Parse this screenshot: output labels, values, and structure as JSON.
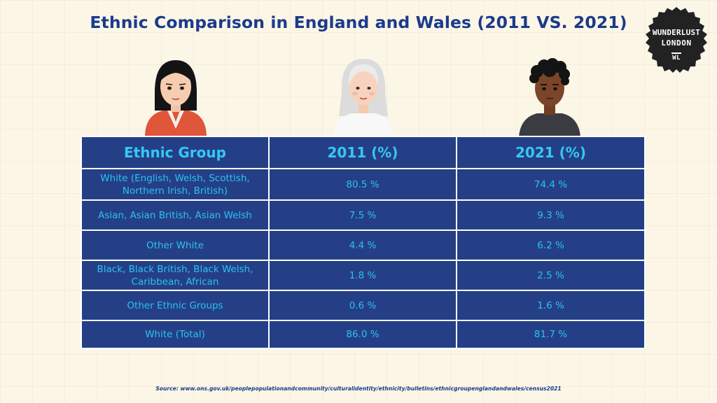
{
  "title": "Ethnic Comparison in England and Wales (2011 VS. 2021)",
  "logo": {
    "line1": "WUNDERLUST",
    "line2": "LONDON",
    "line3": "WL"
  },
  "table": {
    "headers": [
      "Ethnic Group",
      "2011 (%)",
      "2021 (%)"
    ],
    "rows": [
      {
        "group": "White (English, Welsh, Scottish, Northern Irish, British)",
        "y2011": "80.5 %",
        "y2021": "74.4 %"
      },
      {
        "group": "Asian, Asian British, Asian Welsh",
        "y2011": "7.5 %",
        "y2021": "9.3 %"
      },
      {
        "group": "Other White",
        "y2011": "4.4 %",
        "y2021": "6.2 %"
      },
      {
        "group": "Black, Black British, Black Welsh, Caribbean, African",
        "y2011": "1.8 %",
        "y2021": "2.5 %"
      },
      {
        "group": "Other Ethnic Groups",
        "y2011": "0.6 %",
        "y2021": "1.6 %"
      },
      {
        "group": "White (Total)",
        "y2011": "86.0 %",
        "y2021": "81.7 %"
      }
    ]
  },
  "source": "Source: www.ons.gov.uk/peoplepopulationandcommunity/culturalidentity/ethnicity/bulletins/ethnicgroupenglandandwales/census2021",
  "colors": {
    "title": "#1b3a8c",
    "table_bg": "#253f86",
    "table_text": "#29c2f0",
    "background": "#fbf6e6"
  }
}
